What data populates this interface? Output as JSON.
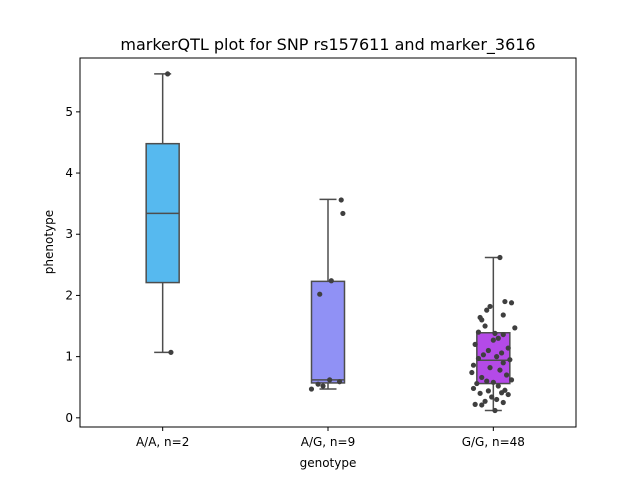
{
  "chart_data": {
    "type": "box",
    "title": "markerQTL plot for SNP rs157611 and marker_3616",
    "xlabel": "genotype",
    "ylabel": "phenotype",
    "ylim": [
      -0.15,
      5.88
    ],
    "yticks": [
      0,
      1,
      2,
      3,
      4,
      5
    ],
    "categories": [
      "A/A, n=2",
      "A/G, n=9",
      "G/G, n=48"
    ],
    "grid": false,
    "colors": [
      "#56b9ef",
      "#9091f5",
      "#b44ae8"
    ],
    "point_color": "#3f3f3f",
    "line_color": "#4d4d4d",
    "boxes": [
      {
        "category": "A/A, n=2",
        "whisker_low": 1.07,
        "q1": 2.21,
        "median": 3.34,
        "q3": 4.48,
        "whisker_high": 5.62
      },
      {
        "category": "A/G, n=9",
        "whisker_low": 0.47,
        "q1": 0.57,
        "median": 0.62,
        "q3": 2.23,
        "whisker_high": 3.57
      },
      {
        "category": "G/G, n=48",
        "whisker_low": 0.12,
        "q1": 0.56,
        "median": 0.94,
        "q3": 1.39,
        "whisker_high": 2.62
      }
    ],
    "points": [
      [
        {
          "offset": 0.03,
          "y": 5.62
        },
        {
          "offset": 0.05,
          "y": 1.07
        }
      ],
      [
        {
          "offset": 0.08,
          "y": 3.56
        },
        {
          "offset": 0.09,
          "y": 3.34
        },
        {
          "offset": 0.02,
          "y": 2.24
        },
        {
          "offset": -0.05,
          "y": 2.02
        },
        {
          "offset": 0.01,
          "y": 0.62
        },
        {
          "offset": 0.07,
          "y": 0.59
        },
        {
          "offset": -0.06,
          "y": 0.55
        },
        {
          "offset": -0.03,
          "y": 0.52
        },
        {
          "offset": -0.1,
          "y": 0.47
        }
      ],
      [
        {
          "offset": 0.04,
          "y": 2.62
        },
        {
          "offset": 0.07,
          "y": 1.9
        },
        {
          "offset": 0.11,
          "y": 1.88
        },
        {
          "offset": -0.02,
          "y": 1.82
        },
        {
          "offset": -0.04,
          "y": 1.76
        },
        {
          "offset": 0.06,
          "y": 1.68
        },
        {
          "offset": -0.08,
          "y": 1.64
        },
        {
          "offset": -0.07,
          "y": 1.6
        },
        {
          "offset": -0.05,
          "y": 1.5
        },
        {
          "offset": 0.13,
          "y": 1.47
        },
        {
          "offset": -0.09,
          "y": 1.4
        },
        {
          "offset": 0.01,
          "y": 1.38
        },
        {
          "offset": 0.06,
          "y": 1.36
        },
        {
          "offset": 0.03,
          "y": 1.3
        },
        {
          "offset": 0.0,
          "y": 1.27
        },
        {
          "offset": -0.11,
          "y": 1.2
        },
        {
          "offset": 0.09,
          "y": 1.14
        },
        {
          "offset": -0.03,
          "y": 1.1
        },
        {
          "offset": 0.05,
          "y": 1.06
        },
        {
          "offset": -0.06,
          "y": 1.03
        },
        {
          "offset": 0.02,
          "y": 1.0
        },
        {
          "offset": -0.09,
          "y": 0.97
        },
        {
          "offset": 0.1,
          "y": 0.95
        },
        {
          "offset": 0.06,
          "y": 0.9
        },
        {
          "offset": -0.12,
          "y": 0.86
        },
        {
          "offset": -0.02,
          "y": 0.82
        },
        {
          "offset": 0.04,
          "y": 0.78
        },
        {
          "offset": -0.13,
          "y": 0.74
        },
        {
          "offset": 0.08,
          "y": 0.7
        },
        {
          "offset": -0.07,
          "y": 0.66
        },
        {
          "offset": 0.11,
          "y": 0.62
        },
        {
          "offset": -0.04,
          "y": 0.6
        },
        {
          "offset": 0.0,
          "y": 0.58
        },
        {
          "offset": -0.1,
          "y": 0.56
        },
        {
          "offset": 0.03,
          "y": 0.52
        },
        {
          "offset": -0.12,
          "y": 0.48
        },
        {
          "offset": 0.07,
          "y": 0.45
        },
        {
          "offset": -0.03,
          "y": 0.44
        },
        {
          "offset": 0.05,
          "y": 0.41
        },
        {
          "offset": -0.08,
          "y": 0.4
        },
        {
          "offset": 0.09,
          "y": 0.38
        },
        {
          "offset": -0.01,
          "y": 0.34
        },
        {
          "offset": 0.02,
          "y": 0.3
        },
        {
          "offset": -0.05,
          "y": 0.27
        },
        {
          "offset": 0.06,
          "y": 0.25
        },
        {
          "offset": -0.11,
          "y": 0.22
        },
        {
          "offset": -0.07,
          "y": 0.21
        },
        {
          "offset": 0.01,
          "y": 0.12
        }
      ]
    ]
  }
}
